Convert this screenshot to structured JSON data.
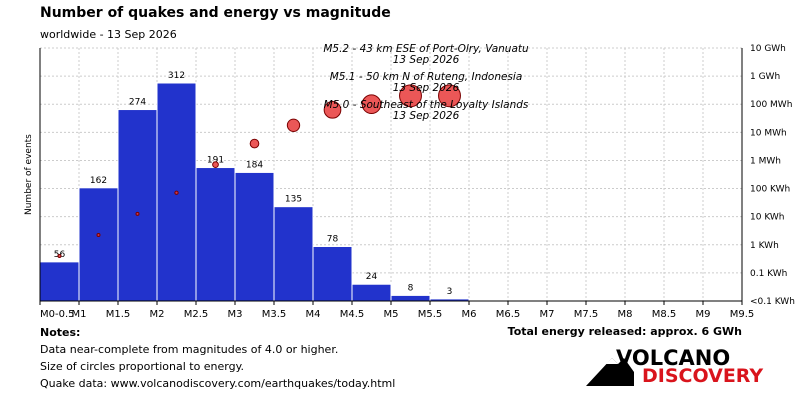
{
  "header": {
    "title": "Number of quakes and energy vs magnitude",
    "subtitle": "worldwide - 13 Sep 2026"
  },
  "chart_data": {
    "type": "bar",
    "ylabel": "Number of events",
    "categories": [
      "M0-0.5",
      "M0.5-1",
      "M1-1.5",
      "M1.5-2",
      "M2-2.5",
      "M2.5-3",
      "M3-3.5",
      "M3.5-4",
      "M4-4.5",
      "M4.5-5",
      "M5-5.5"
    ],
    "values": [
      56,
      162,
      274,
      312,
      191,
      184,
      135,
      78,
      24,
      8,
      3
    ],
    "value_labels": [
      "56",
      "162",
      "274",
      "312",
      "191",
      "184",
      "135",
      "78",
      "24",
      "8",
      "3"
    ],
    "x_tick_labels": [
      "M0-0.5",
      "M1",
      "M1.5",
      "M2",
      "M2.5",
      "M3",
      "M3.5",
      "M4",
      "M4.5",
      "M5",
      "M5.5",
      "M6",
      "M6.5",
      "M7",
      "M7.5",
      "M8",
      "M8.5",
      "M9",
      "M9.5"
    ],
    "ylim": [
      0,
      312
    ],
    "right_axis_labels": [
      "10 GWh",
      "1 GWh",
      "100 MWh",
      "10 MWh",
      "1 MWh",
      "100 KWh",
      "10 KWh",
      "1 KWh",
      "0.1 KWh",
      "<0.1 KWh"
    ],
    "bar_color": "#2233cc",
    "energy_color": "#e83a3a",
    "energy_series": [
      {
        "magnitude": 0.25,
        "energy_log10_kwh": -0.4
      },
      {
        "magnitude": 0.75,
        "energy_log10_kwh": 0.35
      },
      {
        "magnitude": 1.25,
        "energy_log10_kwh": 1.1
      },
      {
        "magnitude": 1.75,
        "energy_log10_kwh": 1.85
      },
      {
        "magnitude": 2.25,
        "energy_log10_kwh": 2.85
      },
      {
        "magnitude": 2.75,
        "energy_log10_kwh": 3.6
      },
      {
        "magnitude": 3.25,
        "energy_log10_kwh": 4.25
      },
      {
        "magnitude": 3.75,
        "energy_log10_kwh": 4.8
      },
      {
        "magnitude": 4.25,
        "energy_log10_kwh": 5.0
      },
      {
        "magnitude": 4.75,
        "energy_log10_kwh": 5.3
      },
      {
        "magnitude": 5.25,
        "energy_log10_kwh": 5.3
      }
    ],
    "annotations": [
      {
        "text": "M5.2 - 43 km ESE of Port-Olry, Vanuatu",
        "date": "13 Sep 2026"
      },
      {
        "text": "M5.1 - 50 km N of Ruteng, Indonesia",
        "date": "13 Sep 2026"
      },
      {
        "text": "M5.0 - Southeast of the Loyalty Islands",
        "date": "13 Sep 2026"
      }
    ]
  },
  "notes": {
    "heading": "Notes:",
    "line1": "Data near-complete from magnitudes of 4.0 or higher.",
    "line2": "Size of circles proportional to energy.",
    "line3": "Quake data: www.volcanodiscovery.com/earthquakes/today.html"
  },
  "energy_total": "Total energy released: approx. 6 GWh",
  "logo": {
    "word1": "VOLCANO",
    "word2": "DISCOVERY"
  }
}
